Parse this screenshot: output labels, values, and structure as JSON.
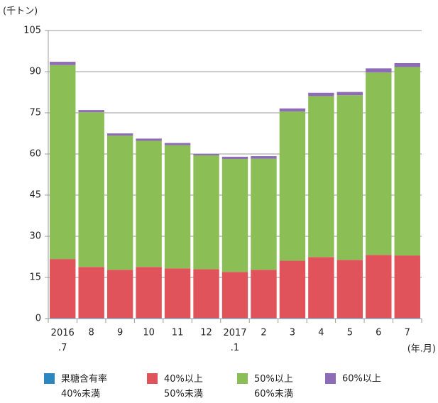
{
  "chart_data": {
    "type": "stacked-bar",
    "y_label": "(千トン)",
    "x_label": "(年.月)",
    "categories": [
      "2016\n.7",
      "8",
      "9",
      "10",
      "11",
      "12",
      "2017\n.1",
      "2",
      "3",
      "4",
      "5",
      "6",
      "7"
    ],
    "series": [
      {
        "name": "果糖含有率\n40%未満",
        "color": "#2e86c1",
        "values": [
          0.2,
          0.2,
          0.2,
          0.2,
          0.2,
          0.2,
          0.2,
          0.2,
          0.2,
          0.2,
          0.2,
          0.2,
          0.2
        ]
      },
      {
        "name": "40%以上\n50%未満",
        "color": "#e0535a",
        "values": [
          21.5,
          18.6,
          17.6,
          18.6,
          18.1,
          17.8,
          16.8,
          17.6,
          20.9,
          22.2,
          21.2,
          23,
          22.8
        ]
      },
      {
        "name": "50%以上\n60%未満",
        "color": "#8bbf56",
        "values": [
          70.7,
          56.4,
          48.9,
          46,
          44.9,
          41.5,
          41.2,
          40.5,
          54.4,
          58.7,
          60,
          66.5,
          68.7
        ]
      },
      {
        "name": "60%以上",
        "color": "#8e6bb6",
        "values": [
          1.2,
          0.8,
          0.8,
          0.8,
          0.8,
          0.5,
          0.8,
          0.9,
          1.1,
          1.2,
          1.2,
          1.5,
          1.4
        ]
      }
    ],
    "ylim": [
      0,
      105
    ],
    "yticks": [
      0,
      15,
      30,
      45,
      60,
      75,
      90,
      105
    ],
    "grid": true
  }
}
